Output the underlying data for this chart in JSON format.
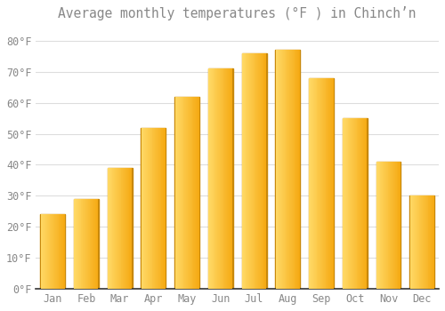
{
  "title": "Average monthly temperatures (°F ) in Chinchʼn",
  "months": [
    "Jan",
    "Feb",
    "Mar",
    "Apr",
    "May",
    "Jun",
    "Jul",
    "Aug",
    "Sep",
    "Oct",
    "Nov",
    "Dec"
  ],
  "values": [
    24,
    29,
    39,
    52,
    62,
    71,
    76,
    77,
    68,
    55,
    41,
    30
  ],
  "bar_color_left": "#FFD966",
  "bar_color_right": "#F5A800",
  "bar_color_edge": "#C8880A",
  "background_color": "#FFFFFF",
  "grid_color": "#DDDDDD",
  "ylim": [
    0,
    85
  ],
  "yticks": [
    0,
    10,
    20,
    30,
    40,
    50,
    60,
    70,
    80
  ],
  "ytick_labels": [
    "0°F",
    "10°F",
    "20°F",
    "30°F",
    "40°F",
    "50°F",
    "60°F",
    "70°F",
    "80°F"
  ],
  "title_fontsize": 10.5,
  "tick_fontsize": 8.5,
  "text_color": "#888888",
  "axis_color": "#333333"
}
